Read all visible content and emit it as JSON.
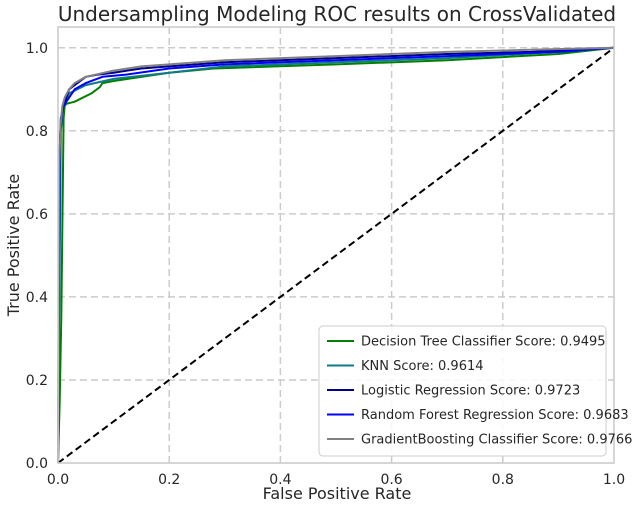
{
  "chart_data": {
    "type": "line",
    "title": "Undersampling Modeling ROC results on CrossValidated",
    "xlabel": "False Positive Rate",
    "ylabel": "True Positive Rate",
    "xlim": [
      0.0,
      1.0
    ],
    "ylim": [
      0.0,
      1.05
    ],
    "x_ticks": [
      0.0,
      0.2,
      0.4,
      0.6,
      0.8,
      1.0
    ],
    "y_ticks": [
      0.0,
      0.2,
      0.4,
      0.6,
      0.8,
      1.0
    ],
    "x_tick_labels": [
      "0.0",
      "0.2",
      "0.4",
      "0.6",
      "0.8",
      "1.0"
    ],
    "y_tick_labels": [
      "0.0",
      "0.2",
      "0.4",
      "0.6",
      "0.8",
      "1.0"
    ],
    "grid": true,
    "legend_position": "lower-right",
    "series": [
      {
        "name": "Decision Tree Classifier Score: 0.9495",
        "color": "#008000",
        "x": [
          0.0,
          0.003,
          0.006,
          0.01,
          0.012,
          0.015,
          0.03,
          0.06,
          0.075,
          0.08,
          0.1,
          0.2,
          0.28,
          0.5,
          0.7,
          0.9,
          1.0
        ],
        "y": [
          0.0,
          0.15,
          0.35,
          0.83,
          0.86,
          0.865,
          0.87,
          0.89,
          0.905,
          0.915,
          0.92,
          0.94,
          0.95,
          0.96,
          0.97,
          0.985,
          1.0
        ]
      },
      {
        "name": "KNN Score: 0.9614",
        "color": "#0e7a8a",
        "x": [
          0.0,
          0.005,
          0.01,
          0.02,
          0.05,
          0.1,
          0.2,
          0.3,
          0.5,
          0.7,
          0.9,
          1.0
        ],
        "y": [
          0.0,
          0.8,
          0.86,
          0.89,
          0.91,
          0.925,
          0.94,
          0.955,
          0.965,
          0.975,
          0.99,
          1.0
        ]
      },
      {
        "name": "Logistic Regression Score: 0.9723",
        "color": "#00008b",
        "x": [
          0.0,
          0.002,
          0.004,
          0.007,
          0.01,
          0.015,
          0.02,
          0.03,
          0.05,
          0.07,
          0.1,
          0.15,
          0.2,
          0.3,
          0.5,
          0.7,
          0.85,
          1.0
        ],
        "y": [
          0.0,
          0.69,
          0.79,
          0.84,
          0.86,
          0.88,
          0.9,
          0.91,
          0.93,
          0.935,
          0.94,
          0.95,
          0.955,
          0.965,
          0.975,
          0.985,
          0.99,
          1.0
        ]
      },
      {
        "name": "Random Forest Regression Score: 0.9683",
        "color": "#0000ff",
        "x": [
          0.0,
          0.003,
          0.005,
          0.01,
          0.02,
          0.03,
          0.05,
          0.08,
          0.12,
          0.2,
          0.3,
          0.5,
          0.7,
          0.9,
          1.0
        ],
        "y": [
          0.0,
          0.75,
          0.83,
          0.86,
          0.88,
          0.9,
          0.915,
          0.93,
          0.935,
          0.95,
          0.96,
          0.97,
          0.98,
          0.99,
          1.0
        ]
      },
      {
        "name": "GradientBoosting Classifier Score: 0.9766",
        "color": "#808080",
        "x": [
          0.0,
          0.002,
          0.005,
          0.008,
          0.012,
          0.02,
          0.03,
          0.05,
          0.1,
          0.15,
          0.2,
          0.3,
          0.5,
          0.7,
          0.85,
          1.0
        ],
        "y": [
          0.0,
          0.72,
          0.82,
          0.86,
          0.88,
          0.9,
          0.915,
          0.93,
          0.945,
          0.955,
          0.96,
          0.97,
          0.98,
          0.99,
          0.995,
          1.0
        ]
      },
      {
        "name": "",
        "color": "#000000",
        "dashed": true,
        "x": [
          0.0,
          1.0
        ],
        "y": [
          0.0,
          1.0
        ]
      }
    ]
  }
}
